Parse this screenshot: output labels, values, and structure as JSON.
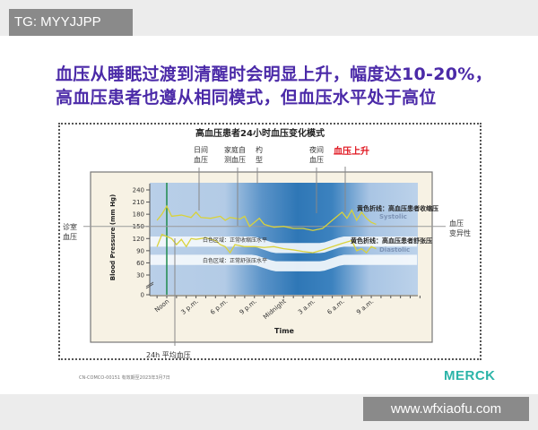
{
  "watermark_top": "TG: MYYJJPP",
  "watermark_bottom": "www.wfxiaofu.com",
  "slide": {
    "title_line1": "血压从睡眠过渡到清醒时会明显上升，幅度达10-20%，",
    "title_line2": "高血压患者也遵从相同模式，但血压水平处于高位",
    "footer_code": "CN-COMCO-00151 有效期至2023年3月7日",
    "logo": "MERCK"
  },
  "annotations": {
    "daytime_bp": [
      "日间",
      "血压"
    ],
    "home_bp": [
      "家庭自",
      "测血压"
    ],
    "dipper": [
      "杓",
      "型"
    ],
    "night_bp": [
      "夜间",
      "血压"
    ],
    "bp_rise": "血压上升",
    "office_bp": [
      "诊室",
      "血压"
    ],
    "bp_variability": [
      "血压",
      "变异性"
    ],
    "avg_24h": "24h 平均血压",
    "systolic_note": "黄色折线：高血压患者收缩压",
    "diastolic_note": "黄色折线：高血压患者舒张压",
    "normal_systolic_note": "白色区域：正常收缩压水平",
    "normal_diastolic_note": "白色区域：正常舒张压水平",
    "colors": {
      "bp_rise": "#e0141e",
      "line": "#d9d23a",
      "green_marker": "#1f8a4c"
    }
  },
  "chart_data": {
    "type": "line",
    "title": "高血压患者24小时血压变化模式",
    "xlabel": "Time",
    "ylabel": "Blood Pressure (mm Hg)",
    "ylim": [
      0,
      240
    ],
    "yticks": [
      0,
      30,
      60,
      90,
      120,
      150,
      180,
      210,
      240
    ],
    "xticks": [
      "Noon",
      "3 p.m.",
      "6 p.m.",
      "9 p.m.",
      "Midnight",
      "3 a.m.",
      "6 a.m.",
      "9 a.m."
    ],
    "grid": false,
    "office_bp_reference": 150,
    "normal_systolic_band": [
      100,
      125
    ],
    "normal_diastolic_band": [
      55,
      80
    ],
    "series": [
      {
        "name": "Systolic",
        "color": "#d9d23a",
        "points": [
          [
            "11:00",
            165
          ],
          [
            "11:30",
            180
          ],
          [
            "12:00",
            200
          ],
          [
            "12:30",
            175
          ],
          [
            "13:30",
            178
          ],
          [
            "14:30",
            172
          ],
          [
            "15:00",
            185
          ],
          [
            "15:30",
            172
          ],
          [
            "16:30",
            170
          ],
          [
            "17:30",
            175
          ],
          [
            "18:00",
            165
          ],
          [
            "18:30",
            172
          ],
          [
            "19:30",
            168
          ],
          [
            "20:00",
            175
          ],
          [
            "20:30",
            150
          ],
          [
            "21:00",
            160
          ],
          [
            "21:30",
            170
          ],
          [
            "22:00",
            155
          ],
          [
            "23:00",
            148
          ],
          [
            "00:00",
            150
          ],
          [
            "01:00",
            145
          ],
          [
            "02:00",
            145
          ],
          [
            "03:00",
            140
          ],
          [
            "04:00",
            145
          ],
          [
            "04:30",
            155
          ],
          [
            "05:00",
            165
          ],
          [
            "06:00",
            185
          ],
          [
            "06:30",
            170
          ],
          [
            "07:00",
            190
          ],
          [
            "07:30",
            165
          ],
          [
            "08:00",
            185
          ],
          [
            "08:30",
            170
          ],
          [
            "09:00",
            160
          ],
          [
            "09:30",
            155
          ]
        ]
      },
      {
        "name": "Diastolic",
        "color": "#d9d23a",
        "points": [
          [
            "11:00",
            100
          ],
          [
            "11:30",
            130
          ],
          [
            "12:00",
            125
          ],
          [
            "12:30",
            120
          ],
          [
            "13:00",
            105
          ],
          [
            "13:30",
            118
          ],
          [
            "14:00",
            100
          ],
          [
            "14:30",
            120
          ],
          [
            "15:00",
            118
          ],
          [
            "16:00",
            122
          ],
          [
            "17:00",
            115
          ],
          [
            "17:30",
            105
          ],
          [
            "18:00",
            100
          ],
          [
            "18:30",
            85
          ],
          [
            "19:00",
            105
          ],
          [
            "20:00",
            100
          ],
          [
            "21:00",
            100
          ],
          [
            "22:00",
            98
          ],
          [
            "23:00",
            100
          ],
          [
            "00:00",
            95
          ],
          [
            "01:00",
            92
          ],
          [
            "02:00",
            88
          ],
          [
            "03:00",
            85
          ],
          [
            "04:00",
            92
          ],
          [
            "05:00",
            100
          ],
          [
            "06:00",
            108
          ],
          [
            "07:00",
            115
          ],
          [
            "07:30",
            90
          ],
          [
            "08:00",
            95
          ],
          [
            "08:30",
            85
          ],
          [
            "09:00",
            100
          ],
          [
            "09:30",
            95
          ]
        ]
      }
    ]
  }
}
